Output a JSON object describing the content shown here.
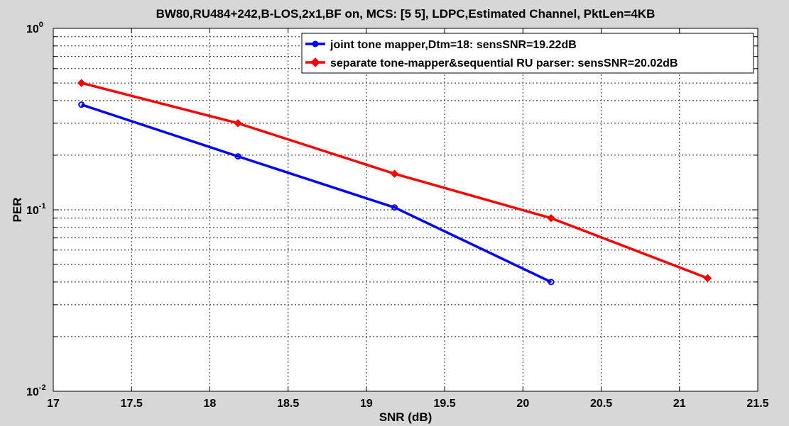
{
  "chart_data": {
    "type": "line",
    "title": "BW80,RU484+242,B-LOS,2x1,BF on, MCS: [5  5], LDPC,Estimated Channel, PktLen=4KB",
    "xlabel": "SNR (dB)",
    "ylabel": "PER",
    "xlim": [
      17,
      21.5
    ],
    "ylim": [
      0.01,
      1
    ],
    "yscale": "log",
    "grid": true,
    "legend_position": "top-right",
    "x_ticks": [
      "17",
      "17.5",
      "18",
      "18.5",
      "19",
      "19.5",
      "20",
      "20.5",
      "21",
      "21.5"
    ],
    "y_ticks": [
      {
        "base": "10",
        "exp": "-2"
      },
      {
        "base": "10",
        "exp": "-1"
      },
      {
        "base": "10",
        "exp": "0"
      }
    ],
    "series": [
      {
        "name": "joint tone mapper,Dtm=18:   sensSNR=19.22dB",
        "color": "#0000ff",
        "marker": "circle",
        "x": [
          17.18,
          18.18,
          19.18,
          20.18
        ],
        "y": [
          0.38,
          0.197,
          0.103,
          0.04
        ]
      },
      {
        "name": "separate tone-mapper&sequential RU parser:   sensSNR=20.02dB",
        "color": "#ff0000",
        "marker": "diamond",
        "x": [
          17.18,
          18.18,
          19.18,
          20.18,
          21.18
        ],
        "y": [
          0.5,
          0.3,
          0.158,
          0.09,
          0.042
        ]
      }
    ]
  }
}
